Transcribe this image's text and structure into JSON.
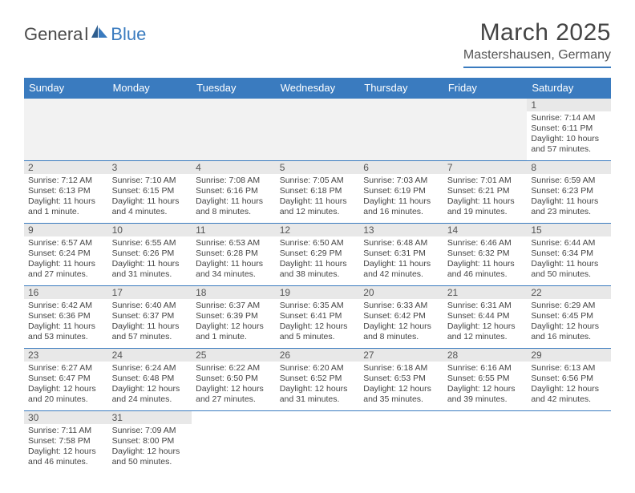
{
  "logo": {
    "general": "Genera",
    "l": "l",
    "blue": "Blue"
  },
  "title": "March 2025",
  "subtitle": "Mastershausen, Germany",
  "headers": [
    "Sunday",
    "Monday",
    "Tuesday",
    "Wednesday",
    "Thursday",
    "Friday",
    "Saturday"
  ],
  "colors": {
    "brand": "#3a7bbf",
    "header_bg": "#3a7bbf",
    "header_text": "#ffffff",
    "daynum_bg": "#e8e8e8",
    "empty_bg": "#f2f2f2",
    "border": "#3a7bbf",
    "text": "#444444"
  },
  "weeks": [
    [
      null,
      null,
      null,
      null,
      null,
      null,
      {
        "n": "1",
        "sunrise": "Sunrise: 7:14 AM",
        "sunset": "Sunset: 6:11 PM",
        "dl1": "Daylight: 10 hours",
        "dl2": "and 57 minutes."
      }
    ],
    [
      {
        "n": "2",
        "sunrise": "Sunrise: 7:12 AM",
        "sunset": "Sunset: 6:13 PM",
        "dl1": "Daylight: 11 hours",
        "dl2": "and 1 minute."
      },
      {
        "n": "3",
        "sunrise": "Sunrise: 7:10 AM",
        "sunset": "Sunset: 6:15 PM",
        "dl1": "Daylight: 11 hours",
        "dl2": "and 4 minutes."
      },
      {
        "n": "4",
        "sunrise": "Sunrise: 7:08 AM",
        "sunset": "Sunset: 6:16 PM",
        "dl1": "Daylight: 11 hours",
        "dl2": "and 8 minutes."
      },
      {
        "n": "5",
        "sunrise": "Sunrise: 7:05 AM",
        "sunset": "Sunset: 6:18 PM",
        "dl1": "Daylight: 11 hours",
        "dl2": "and 12 minutes."
      },
      {
        "n": "6",
        "sunrise": "Sunrise: 7:03 AM",
        "sunset": "Sunset: 6:19 PM",
        "dl1": "Daylight: 11 hours",
        "dl2": "and 16 minutes."
      },
      {
        "n": "7",
        "sunrise": "Sunrise: 7:01 AM",
        "sunset": "Sunset: 6:21 PM",
        "dl1": "Daylight: 11 hours",
        "dl2": "and 19 minutes."
      },
      {
        "n": "8",
        "sunrise": "Sunrise: 6:59 AM",
        "sunset": "Sunset: 6:23 PM",
        "dl1": "Daylight: 11 hours",
        "dl2": "and 23 minutes."
      }
    ],
    [
      {
        "n": "9",
        "sunrise": "Sunrise: 6:57 AM",
        "sunset": "Sunset: 6:24 PM",
        "dl1": "Daylight: 11 hours",
        "dl2": "and 27 minutes."
      },
      {
        "n": "10",
        "sunrise": "Sunrise: 6:55 AM",
        "sunset": "Sunset: 6:26 PM",
        "dl1": "Daylight: 11 hours",
        "dl2": "and 31 minutes."
      },
      {
        "n": "11",
        "sunrise": "Sunrise: 6:53 AM",
        "sunset": "Sunset: 6:28 PM",
        "dl1": "Daylight: 11 hours",
        "dl2": "and 34 minutes."
      },
      {
        "n": "12",
        "sunrise": "Sunrise: 6:50 AM",
        "sunset": "Sunset: 6:29 PM",
        "dl1": "Daylight: 11 hours",
        "dl2": "and 38 minutes."
      },
      {
        "n": "13",
        "sunrise": "Sunrise: 6:48 AM",
        "sunset": "Sunset: 6:31 PM",
        "dl1": "Daylight: 11 hours",
        "dl2": "and 42 minutes."
      },
      {
        "n": "14",
        "sunrise": "Sunrise: 6:46 AM",
        "sunset": "Sunset: 6:32 PM",
        "dl1": "Daylight: 11 hours",
        "dl2": "and 46 minutes."
      },
      {
        "n": "15",
        "sunrise": "Sunrise: 6:44 AM",
        "sunset": "Sunset: 6:34 PM",
        "dl1": "Daylight: 11 hours",
        "dl2": "and 50 minutes."
      }
    ],
    [
      {
        "n": "16",
        "sunrise": "Sunrise: 6:42 AM",
        "sunset": "Sunset: 6:36 PM",
        "dl1": "Daylight: 11 hours",
        "dl2": "and 53 minutes."
      },
      {
        "n": "17",
        "sunrise": "Sunrise: 6:40 AM",
        "sunset": "Sunset: 6:37 PM",
        "dl1": "Daylight: 11 hours",
        "dl2": "and 57 minutes."
      },
      {
        "n": "18",
        "sunrise": "Sunrise: 6:37 AM",
        "sunset": "Sunset: 6:39 PM",
        "dl1": "Daylight: 12 hours",
        "dl2": "and 1 minute."
      },
      {
        "n": "19",
        "sunrise": "Sunrise: 6:35 AM",
        "sunset": "Sunset: 6:41 PM",
        "dl1": "Daylight: 12 hours",
        "dl2": "and 5 minutes."
      },
      {
        "n": "20",
        "sunrise": "Sunrise: 6:33 AM",
        "sunset": "Sunset: 6:42 PM",
        "dl1": "Daylight: 12 hours",
        "dl2": "and 8 minutes."
      },
      {
        "n": "21",
        "sunrise": "Sunrise: 6:31 AM",
        "sunset": "Sunset: 6:44 PM",
        "dl1": "Daylight: 12 hours",
        "dl2": "and 12 minutes."
      },
      {
        "n": "22",
        "sunrise": "Sunrise: 6:29 AM",
        "sunset": "Sunset: 6:45 PM",
        "dl1": "Daylight: 12 hours",
        "dl2": "and 16 minutes."
      }
    ],
    [
      {
        "n": "23",
        "sunrise": "Sunrise: 6:27 AM",
        "sunset": "Sunset: 6:47 PM",
        "dl1": "Daylight: 12 hours",
        "dl2": "and 20 minutes."
      },
      {
        "n": "24",
        "sunrise": "Sunrise: 6:24 AM",
        "sunset": "Sunset: 6:48 PM",
        "dl1": "Daylight: 12 hours",
        "dl2": "and 24 minutes."
      },
      {
        "n": "25",
        "sunrise": "Sunrise: 6:22 AM",
        "sunset": "Sunset: 6:50 PM",
        "dl1": "Daylight: 12 hours",
        "dl2": "and 27 minutes."
      },
      {
        "n": "26",
        "sunrise": "Sunrise: 6:20 AM",
        "sunset": "Sunset: 6:52 PM",
        "dl1": "Daylight: 12 hours",
        "dl2": "and 31 minutes."
      },
      {
        "n": "27",
        "sunrise": "Sunrise: 6:18 AM",
        "sunset": "Sunset: 6:53 PM",
        "dl1": "Daylight: 12 hours",
        "dl2": "and 35 minutes."
      },
      {
        "n": "28",
        "sunrise": "Sunrise: 6:16 AM",
        "sunset": "Sunset: 6:55 PM",
        "dl1": "Daylight: 12 hours",
        "dl2": "and 39 minutes."
      },
      {
        "n": "29",
        "sunrise": "Sunrise: 6:13 AM",
        "sunset": "Sunset: 6:56 PM",
        "dl1": "Daylight: 12 hours",
        "dl2": "and 42 minutes."
      }
    ],
    [
      {
        "n": "30",
        "sunrise": "Sunrise: 7:11 AM",
        "sunset": "Sunset: 7:58 PM",
        "dl1": "Daylight: 12 hours",
        "dl2": "and 46 minutes."
      },
      {
        "n": "31",
        "sunrise": "Sunrise: 7:09 AM",
        "sunset": "Sunset: 8:00 PM",
        "dl1": "Daylight: 12 hours",
        "dl2": "and 50 minutes."
      },
      null,
      null,
      null,
      null,
      null
    ]
  ]
}
